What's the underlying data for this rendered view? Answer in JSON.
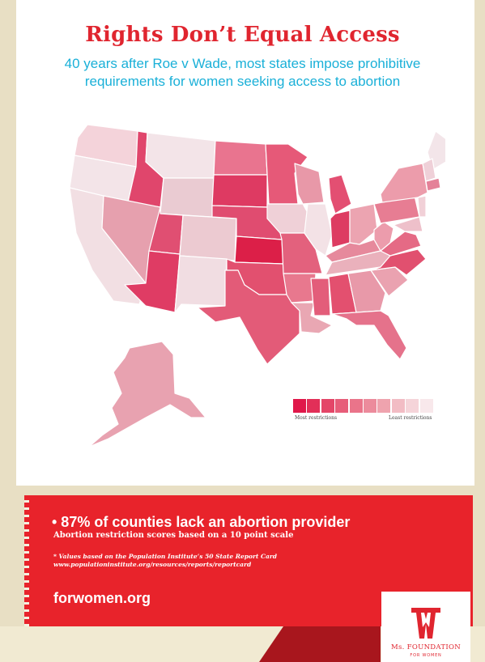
{
  "header": {
    "title": "Rights Don’t Equal Access",
    "subtitle_line1": "40 years after Roe v Wade, most states impose prohibitive",
    "subtitle_line2": "requirements for women seeking access to abortion"
  },
  "legend": {
    "colors": [
      "#e0184a",
      "#e22f58",
      "#e44668",
      "#e75d79",
      "#ea748a",
      "#ec8b9c",
      "#efa3ae",
      "#f2bcc4",
      "#f5d4d9",
      "#f8e8eb"
    ],
    "most_label": "Most restrictions",
    "least_label": "Least restrictions"
  },
  "map_states": [
    {
      "name": "washington",
      "color": "#f4d3da"
    },
    {
      "name": "oregon",
      "color": "#f3e4e8"
    },
    {
      "name": "california",
      "color": "#f2dfe3"
    },
    {
      "name": "idaho",
      "color": "#e0466c"
    },
    {
      "name": "nevada",
      "color": "#e6a0ae"
    },
    {
      "name": "montana",
      "color": "#f3e4e8"
    },
    {
      "name": "wyoming",
      "color": "#eacbd2"
    },
    {
      "name": "utah",
      "color": "#e04f72"
    },
    {
      "name": "arizona",
      "color": "#df3c64"
    },
    {
      "name": "colorado",
      "color": "#eccad1"
    },
    {
      "name": "new-mexico",
      "color": "#f1dde2"
    },
    {
      "name": "north-dakota",
      "color": "#e9748f"
    },
    {
      "name": "south-dakota",
      "color": "#de3a62"
    },
    {
      "name": "nebraska",
      "color": "#e04c70"
    },
    {
      "name": "kansas",
      "color": "#dc1f48"
    },
    {
      "name": "oklahoma",
      "color": "#e2506f"
    },
    {
      "name": "texas",
      "color": "#e35b78"
    },
    {
      "name": "minnesota",
      "color": "#e65978"
    },
    {
      "name": "iowa",
      "color": "#efd0d7"
    },
    {
      "name": "missouri",
      "color": "#e3617d"
    },
    {
      "name": "arkansas",
      "color": "#e8788e"
    },
    {
      "name": "louisiana",
      "color": "#e9a7b3"
    },
    {
      "name": "wisconsin",
      "color": "#e898a8"
    },
    {
      "name": "illinois",
      "color": "#f3e2e6"
    },
    {
      "name": "michigan",
      "color": "#e34f72"
    },
    {
      "name": "indiana",
      "color": "#dd3c62"
    },
    {
      "name": "ohio",
      "color": "#eca4b1"
    },
    {
      "name": "kentucky",
      "color": "#e6899c"
    },
    {
      "name": "tennessee",
      "color": "#eab1bc"
    },
    {
      "name": "mississippi",
      "color": "#e35d7a"
    },
    {
      "name": "alabama",
      "color": "#e3506f"
    },
    {
      "name": "georgia",
      "color": "#e899a9"
    },
    {
      "name": "florida",
      "color": "#e5728b"
    },
    {
      "name": "south-carolina",
      "color": "#eaa2b0"
    },
    {
      "name": "north-carolina",
      "color": "#e1506f"
    },
    {
      "name": "virginia",
      "color": "#e56a85"
    },
    {
      "name": "west-virginia",
      "color": "#ec9cac"
    },
    {
      "name": "pennsylvania",
      "color": "#e77d93"
    },
    {
      "name": "new-york",
      "color": "#ec9cab"
    },
    {
      "name": "maine",
      "color": "#f3e5e9"
    },
    {
      "name": "vermont-nh",
      "color": "#efd0d8"
    },
    {
      "name": "massachusetts",
      "color": "#e48198"
    },
    {
      "name": "new-jersey",
      "color": "#f1d0d7"
    },
    {
      "name": "maryland-delaware",
      "color": "#eec0ca"
    },
    {
      "name": "alaska",
      "color": "#e8a2b0"
    }
  ],
  "banner": {
    "headline": "• 87% of counties lack an abortion provider",
    "subline": "Abortion restriction scores based on a 10 point scale",
    "note_line1": "* Values based on the Population Institute’s 50 State Report Card",
    "note_line2": "www.populationinstitute.org/resources/reports/reportcard",
    "website": "forwomen.org"
  },
  "logo": {
    "name": "Ms. FOUNDATION",
    "tagline": "FOR WOMEN"
  }
}
